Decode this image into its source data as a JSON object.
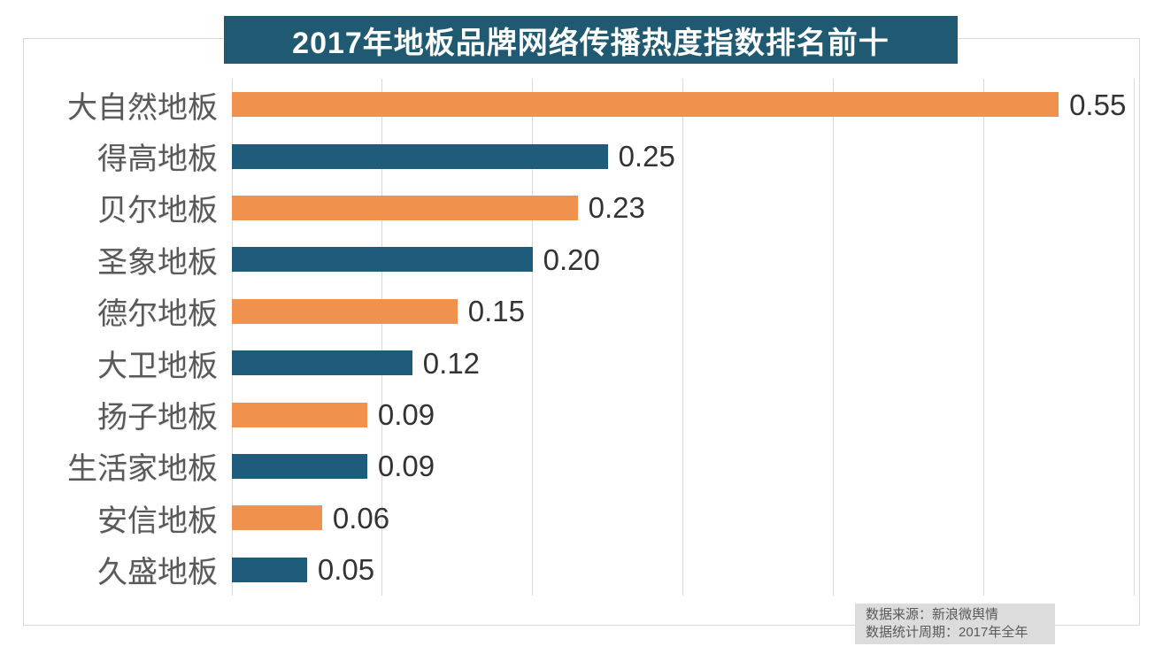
{
  "title": "2017年地板品牌网络传播热度指数排名前十",
  "source_note": {
    "line1": "数据来源：新浪微舆情",
    "line2": "数据统计周期：2017年全年"
  },
  "colors": {
    "title_bg": "#205a72",
    "bar_orange": "#f0924e",
    "bar_blue": "#1f5c7c",
    "grid": "#d9d9d9",
    "frame": "#d9d9d9",
    "category_label": "#595959",
    "value_label": "#333333",
    "note_bg": "#dcdcdc",
    "note_text": "#595959"
  },
  "chart_data": {
    "type": "bar",
    "orientation": "horizontal",
    "title": "2017年地板品牌网络传播热度指数排名前十",
    "categories": [
      "大自然地板",
      "得高地板",
      "贝尔地板",
      "圣象地板",
      "德尔地板",
      "大卫地板",
      "扬子地板",
      "生活家地板",
      "安信地板",
      "久盛地板"
    ],
    "values": [
      0.55,
      0.25,
      0.23,
      0.2,
      0.15,
      0.12,
      0.09,
      0.09,
      0.06,
      0.05
    ],
    "value_labels": [
      "0.55",
      "0.25",
      "0.23",
      "0.20",
      "0.15",
      "0.12",
      "0.09",
      "0.09",
      "0.06",
      "0.05"
    ],
    "bar_palette": [
      "#f0924e",
      "#1f5c7c"
    ],
    "xlabel": "",
    "ylabel": "",
    "xlim": [
      0,
      0.6
    ],
    "grid_ticks": [
      0,
      0.1,
      0.2,
      0.3,
      0.4,
      0.5,
      0.6
    ],
    "grid": true,
    "legend": false,
    "data_labels": true
  }
}
